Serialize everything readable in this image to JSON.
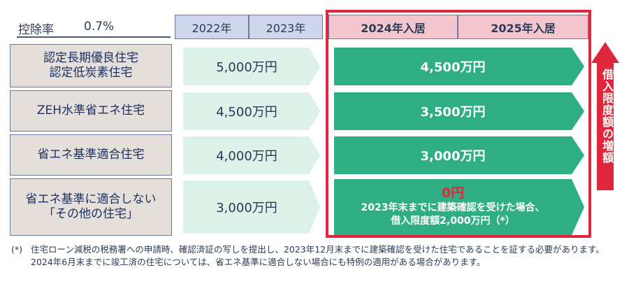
{
  "rate": {
    "label": "控除率",
    "value": "0.7%"
  },
  "years": [
    "2022年",
    "2023年",
    "2024年入居",
    "2025年入居"
  ],
  "rows": [
    {
      "label_lines": [
        "認定長期優良住宅",
        "認定低炭素住宅"
      ],
      "old": "5,000万円",
      "new": "4,500万円"
    },
    {
      "label_lines": [
        "ZEH水準省エネ住宅"
      ],
      "old": "4,500万円",
      "new": "3,500万円"
    },
    {
      "label_lines": [
        "省エネ基準適合住宅"
      ],
      "old": "4,000万円",
      "new": "3,000万円"
    },
    {
      "label_lines": [
        "省エネ基準に適合しない",
        "「その他の住宅」"
      ],
      "old": "3,000万円",
      "new_zero": "0円",
      "new_note_lines": [
        "2023年末までに建築確認を受けた場合、",
        "借入限度額2,000万円（*）"
      ]
    }
  ],
  "increase_label": "借入限度額の増額",
  "footnote": {
    "mark": "(*)",
    "text": "住宅ローン減税の税務署への申請時、確認済証の写しを提出し、2023年12月末までに建築確認を受けた住宅であることを証する必要があります。2024年6月末までに竣工済の住宅については、省エネ基準に適合しない場合にも特例の適用がある場合があります。"
  },
  "colors": {
    "old_arrow": "#dcf1e7",
    "new_arrow": "#2fae84",
    "frame": "#e0263a",
    "zero_text": "#e8243a"
  }
}
